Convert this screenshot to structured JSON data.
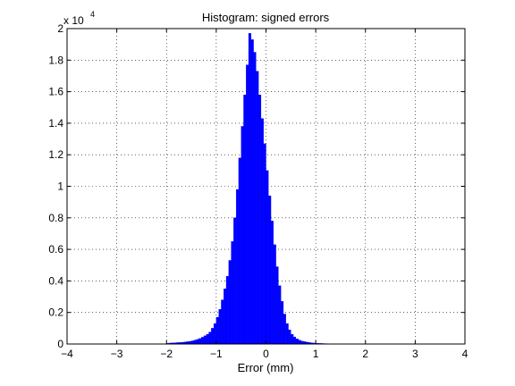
{
  "chart_data": {
    "type": "bar",
    "title": "Histogram: signed errors",
    "xlabel": "Error (mm)",
    "ylabel": "",
    "y_multiplier_label": "x 10",
    "y_multiplier_exponent": "4",
    "xlim": [
      -4,
      4
    ],
    "ylim": [
      0,
      20000
    ],
    "x_ticks": [
      -4,
      -3,
      -2,
      -1,
      0,
      1,
      2,
      3,
      4
    ],
    "x_tick_labels": [
      "−4",
      "−3",
      "−2",
      "−1",
      "0",
      "1",
      "2",
      "3",
      "4"
    ],
    "y_ticks": [
      0,
      2000,
      4000,
      6000,
      8000,
      10000,
      12000,
      14000,
      16000,
      18000,
      20000
    ],
    "y_tick_labels": [
      "0",
      "0.2",
      "0.4",
      "0.6",
      "0.8",
      "1",
      "1.2",
      "1.4",
      "1.6",
      "1.8",
      "2"
    ],
    "grid": true,
    "bar_color": "#0000ff",
    "bin_start": -2.0,
    "bin_width": 0.05,
    "values": [
      50,
      60,
      70,
      80,
      90,
      100,
      110,
      130,
      150,
      170,
      200,
      250,
      300,
      350,
      430,
      520,
      620,
      760,
      1000,
      1300,
      1700,
      2200,
      2800,
      3500,
      4300,
      5300,
      6500,
      8000,
      9800,
      11800,
      13800,
      15800,
      17700,
      19700,
      19300,
      18500,
      17300,
      15800,
      14300,
      12700,
      11000,
      9400,
      7800,
      6300,
      4900,
      3700,
      2700,
      1900,
      1300,
      900,
      620,
      450,
      330,
      250,
      190,
      150,
      120,
      95,
      75,
      60,
      50,
      40,
      33,
      27,
      22,
      18,
      15,
      12,
      10,
      8,
      7,
      6
    ]
  }
}
